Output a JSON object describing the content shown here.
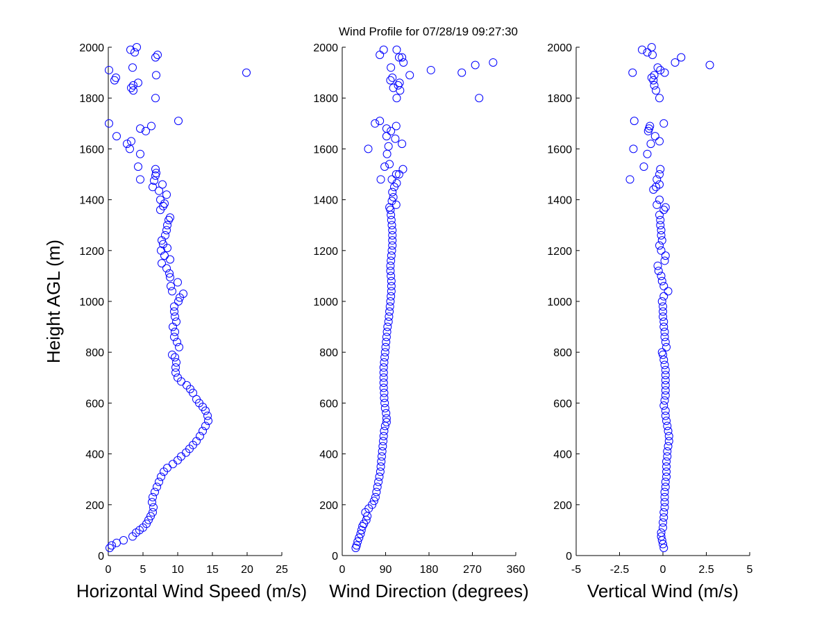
{
  "figure": {
    "title": "Wind Profile for  07/28/19 09:27:30"
  },
  "colors": {
    "marker": "#0000ff",
    "axes": "#000000",
    "background": "#ffffff"
  },
  "chart_data": [
    {
      "type": "scatter",
      "id": "speed",
      "xlabel": "Horizontal Wind Speed (m/s)",
      "ylabel": "Height AGL (m)",
      "xlim": [
        0,
        25
      ],
      "ylim": [
        0,
        2000
      ],
      "xticks": [
        "0",
        "5",
        "10",
        "15",
        "20",
        "25"
      ],
      "yticks": [
        "0",
        "200",
        "400",
        "600",
        "800",
        "1000",
        "1200",
        "1400",
        "1600",
        "1800",
        "2000"
      ],
      "grid": false,
      "marker": "open-circle",
      "points": [
        [
          0.2,
          30
        ],
        [
          0.5,
          40
        ],
        [
          1.2,
          50
        ],
        [
          2.2,
          60
        ],
        [
          3.5,
          75
        ],
        [
          4,
          90
        ],
        [
          4.5,
          100
        ],
        [
          5,
          110
        ],
        [
          5.5,
          125
        ],
        [
          5.8,
          140
        ],
        [
          6.1,
          155
        ],
        [
          6.4,
          170
        ],
        [
          6.5,
          190
        ],
        [
          6.3,
          210
        ],
        [
          6.4,
          230
        ],
        [
          6.7,
          250
        ],
        [
          7,
          270
        ],
        [
          7.3,
          290
        ],
        [
          7.6,
          310
        ],
        [
          8,
          330
        ],
        [
          8.5,
          345
        ],
        [
          9.3,
          360
        ],
        [
          10,
          375
        ],
        [
          10.5,
          390
        ],
        [
          11.2,
          405
        ],
        [
          11.7,
          420
        ],
        [
          12.2,
          435
        ],
        [
          12.7,
          450
        ],
        [
          13.2,
          470
        ],
        [
          13.6,
          490
        ],
        [
          14,
          510
        ],
        [
          14.4,
          530
        ],
        [
          14.3,
          550
        ],
        [
          14,
          570
        ],
        [
          13.6,
          585
        ],
        [
          13.1,
          600
        ],
        [
          12.7,
          615
        ],
        [
          12.2,
          640
        ],
        [
          11.8,
          655
        ],
        [
          11.3,
          670
        ],
        [
          10.5,
          685
        ],
        [
          10,
          700
        ],
        [
          9.7,
          720
        ],
        [
          9.7,
          740
        ],
        [
          9.8,
          760
        ],
        [
          9.6,
          780
        ],
        [
          9.2,
          790
        ],
        [
          10.2,
          820
        ],
        [
          9.9,
          840
        ],
        [
          9.5,
          860
        ],
        [
          9.6,
          880
        ],
        [
          9.3,
          900
        ],
        [
          9.8,
          920
        ],
        [
          9.6,
          940
        ],
        [
          9.5,
          960
        ],
        [
          9.5,
          980
        ],
        [
          10.1,
          1000
        ],
        [
          10.3,
          1015
        ],
        [
          10.8,
          1030
        ],
        [
          9.2,
          1040
        ],
        [
          9,
          1060
        ],
        [
          10,
          1075
        ],
        [
          8.9,
          1095
        ],
        [
          8.8,
          1110
        ],
        [
          8.4,
          1130
        ],
        [
          7.7,
          1150
        ],
        [
          8.9,
          1165
        ],
        [
          8.1,
          1180
        ],
        [
          7.6,
          1200
        ],
        [
          8.5,
          1210
        ],
        [
          7.9,
          1225
        ],
        [
          7.7,
          1240
        ],
        [
          8.2,
          1260
        ],
        [
          8.4,
          1280
        ],
        [
          8.5,
          1300
        ],
        [
          8.7,
          1320
        ],
        [
          8.9,
          1330
        ],
        [
          7.5,
          1360
        ],
        [
          7.9,
          1375
        ],
        [
          8.1,
          1385
        ],
        [
          7.5,
          1400
        ],
        [
          8.4,
          1420
        ],
        [
          7.3,
          1435
        ],
        [
          7.8,
          1460
        ],
        [
          6.4,
          1450
        ],
        [
          6.6,
          1475
        ],
        [
          4.6,
          1480
        ],
        [
          6.8,
          1495
        ],
        [
          6.9,
          1505
        ],
        [
          6.8,
          1520
        ],
        [
          4.3,
          1530
        ],
        [
          4.6,
          1580
        ],
        [
          3.1,
          1600
        ],
        [
          3.3,
          1630
        ],
        [
          2.7,
          1620
        ],
        [
          1.2,
          1650
        ],
        [
          5.4,
          1670
        ],
        [
          4.6,
          1680
        ],
        [
          6.2,
          1690
        ],
        [
          0.1,
          1700
        ],
        [
          10.1,
          1710
        ],
        [
          6.8,
          1800
        ],
        [
          3.6,
          1830
        ],
        [
          3.3,
          1840
        ],
        [
          3.6,
          1850
        ],
        [
          4.3,
          1860
        ],
        [
          0.9,
          1870
        ],
        [
          1.1,
          1880
        ],
        [
          6.9,
          1890
        ],
        [
          0.1,
          1910
        ],
        [
          3.5,
          1920
        ],
        [
          19.9,
          1900
        ],
        [
          7.1,
          1970
        ],
        [
          6.8,
          1960
        ],
        [
          3.8,
          1980
        ],
        [
          3.2,
          1990
        ],
        [
          4.1,
          2000
        ]
      ]
    },
    {
      "type": "scatter",
      "id": "direction",
      "xlabel": "Wind Direction (degrees)",
      "ylabel": "",
      "xlim": [
        0,
        360
      ],
      "ylim": [
        0,
        2000
      ],
      "xticks": [
        "0",
        "90",
        "180",
        "270",
        "360"
      ],
      "yticks": [
        "0",
        "200",
        "400",
        "600",
        "800",
        "1000",
        "1200",
        "1400",
        "1600",
        "1800",
        "2000"
      ],
      "grid": false,
      "marker": "open-circle",
      "points": [
        [
          28,
          30
        ],
        [
          30,
          40
        ],
        [
          32,
          55
        ],
        [
          35,
          70
        ],
        [
          38,
          85
        ],
        [
          40,
          100
        ],
        [
          42,
          115
        ],
        [
          45,
          125
        ],
        [
          50,
          140
        ],
        [
          52,
          155
        ],
        [
          48,
          170
        ],
        [
          55,
          185
        ],
        [
          62,
          200
        ],
        [
          66,
          215
        ],
        [
          69,
          230
        ],
        [
          71,
          250
        ],
        [
          73,
          270
        ],
        [
          75,
          290
        ],
        [
          77,
          310
        ],
        [
          79,
          330
        ],
        [
          80,
          350
        ],
        [
          81,
          370
        ],
        [
          82,
          390
        ],
        [
          83,
          410
        ],
        [
          84,
          430
        ],
        [
          85,
          450
        ],
        [
          86,
          470
        ],
        [
          87,
          490
        ],
        [
          89,
          510
        ],
        [
          92,
          525
        ],
        [
          92,
          540
        ],
        [
          91,
          560
        ],
        [
          89,
          580
        ],
        [
          88,
          600
        ],
        [
          87,
          620
        ],
        [
          87,
          640
        ],
        [
          86,
          660
        ],
        [
          86,
          680
        ],
        [
          86,
          700
        ],
        [
          86,
          720
        ],
        [
          86,
          740
        ],
        [
          87,
          760
        ],
        [
          88,
          780
        ],
        [
          89,
          800
        ],
        [
          90,
          820
        ],
        [
          91,
          840
        ],
        [
          92,
          860
        ],
        [
          93,
          880
        ],
        [
          94,
          900
        ],
        [
          96,
          920
        ],
        [
          97,
          940
        ],
        [
          98,
          960
        ],
        [
          99,
          980
        ],
        [
          100,
          1000
        ],
        [
          101,
          1020
        ],
        [
          102,
          1040
        ],
        [
          102,
          1060
        ],
        [
          102,
          1080
        ],
        [
          101,
          1100
        ],
        [
          100,
          1120
        ],
        [
          100,
          1140
        ],
        [
          101,
          1160
        ],
        [
          102,
          1180
        ],
        [
          103,
          1200
        ],
        [
          104,
          1220
        ],
        [
          104,
          1240
        ],
        [
          104,
          1260
        ],
        [
          104,
          1280
        ],
        [
          103,
          1300
        ],
        [
          102,
          1320
        ],
        [
          101,
          1340
        ],
        [
          100,
          1360
        ],
        [
          98,
          1370
        ],
        [
          112,
          1380
        ],
        [
          103,
          1395
        ],
        [
          106,
          1410
        ],
        [
          104,
          1430
        ],
        [
          108,
          1450
        ],
        [
          113,
          1465
        ],
        [
          103,
          1480
        ],
        [
          80,
          1480
        ],
        [
          112,
          1500
        ],
        [
          118,
          1500
        ],
        [
          126,
          1520
        ],
        [
          88,
          1530
        ],
        [
          98,
          1540
        ],
        [
          93,
          1580
        ],
        [
          54,
          1600
        ],
        [
          96,
          1610
        ],
        [
          110,
          1640
        ],
        [
          124,
          1620
        ],
        [
          92,
          1650
        ],
        [
          101,
          1670
        ],
        [
          92,
          1680
        ],
        [
          112,
          1690
        ],
        [
          68,
          1700
        ],
        [
          78,
          1710
        ],
        [
          127,
          1940
        ],
        [
          113,
          1800
        ],
        [
          120,
          1830
        ],
        [
          106,
          1840
        ],
        [
          116,
          1850
        ],
        [
          119,
          1860
        ],
        [
          100,
          1870
        ],
        [
          104,
          1880
        ],
        [
          140,
          1890
        ],
        [
          184,
          1910
        ],
        [
          101,
          1920
        ],
        [
          248,
          1900
        ],
        [
          276,
          1930
        ],
        [
          313,
          1940
        ],
        [
          284,
          1800
        ],
        [
          78,
          1970
        ],
        [
          86,
          1990
        ],
        [
          113,
          1990
        ],
        [
          118,
          1960
        ],
        [
          124,
          1960
        ]
      ]
    },
    {
      "type": "scatter",
      "id": "vertical",
      "xlabel": "Vertical Wind (m/s)",
      "ylabel": "",
      "xlim": [
        -5,
        5
      ],
      "ylim": [
        0,
        2000
      ],
      "xticks": [
        "-5",
        "-2.5",
        "0",
        "2.5",
        "5"
      ],
      "yticks": [
        "0",
        "200",
        "400",
        "600",
        "800",
        "1000",
        "1200",
        "1400",
        "1600",
        "1800",
        "2000"
      ],
      "grid": false,
      "marker": "open-circle",
      "points": [
        [
          0.05,
          30
        ],
        [
          0,
          45
        ],
        [
          -0.05,
          60
        ],
        [
          -0.1,
          75
        ],
        [
          -0.1,
          90
        ],
        [
          0,
          110
        ],
        [
          0,
          130
        ],
        [
          0.05,
          150
        ],
        [
          0.05,
          170
        ],
        [
          0.1,
          190
        ],
        [
          0.1,
          210
        ],
        [
          0.1,
          230
        ],
        [
          0.1,
          250
        ],
        [
          0.15,
          270
        ],
        [
          0.15,
          290
        ],
        [
          0.2,
          310
        ],
        [
          0.2,
          330
        ],
        [
          0.2,
          350
        ],
        [
          0.2,
          370
        ],
        [
          0.25,
          390
        ],
        [
          0.25,
          410
        ],
        [
          0.3,
          430
        ],
        [
          0.35,
          450
        ],
        [
          0.35,
          470
        ],
        [
          0.3,
          490
        ],
        [
          0.25,
          510
        ],
        [
          0.2,
          530
        ],
        [
          0.15,
          550
        ],
        [
          0.15,
          570
        ],
        [
          0.05,
          590
        ],
        [
          0.1,
          610
        ],
        [
          0.15,
          630
        ],
        [
          0.15,
          650
        ],
        [
          0.15,
          670
        ],
        [
          0.15,
          690
        ],
        [
          0.15,
          710
        ],
        [
          0.15,
          730
        ],
        [
          0.1,
          750
        ],
        [
          0.05,
          770
        ],
        [
          0,
          790
        ],
        [
          -0.05,
          800
        ],
        [
          0.2,
          820
        ],
        [
          0.15,
          840
        ],
        [
          0.1,
          860
        ],
        [
          0.1,
          880
        ],
        [
          0.05,
          900
        ],
        [
          0.05,
          920
        ],
        [
          0,
          940
        ],
        [
          0,
          960
        ],
        [
          0,
          980
        ],
        [
          -0.05,
          1000
        ],
        [
          0.05,
          1020
        ],
        [
          0.3,
          1040
        ],
        [
          0.05,
          1060
        ],
        [
          -0.05,
          1080
        ],
        [
          -0.1,
          1100
        ],
        [
          -0.25,
          1120
        ],
        [
          -0.3,
          1140
        ],
        [
          0.1,
          1160
        ],
        [
          0.15,
          1180
        ],
        [
          -0.1,
          1200
        ],
        [
          -0.2,
          1220
        ],
        [
          -0.05,
          1240
        ],
        [
          -0.1,
          1260
        ],
        [
          -0.1,
          1280
        ],
        [
          -0.15,
          1300
        ],
        [
          -0.15,
          1320
        ],
        [
          -0.2,
          1340
        ],
        [
          0.05,
          1360
        ],
        [
          0.15,
          1370
        ],
        [
          -0.35,
          1380
        ],
        [
          -0.2,
          1400
        ],
        [
          -0.55,
          1440
        ],
        [
          -0.4,
          1450
        ],
        [
          -0.2,
          1460
        ],
        [
          -0.35,
          1480
        ],
        [
          -1.9,
          1480
        ],
        [
          -0.2,
          1500
        ],
        [
          -0.15,
          1520
        ],
        [
          -1.1,
          1530
        ],
        [
          -0.9,
          1580
        ],
        [
          -1.7,
          1600
        ],
        [
          -0.7,
          1620
        ],
        [
          -0.2,
          1630
        ],
        [
          -0.45,
          1650
        ],
        [
          -0.8,
          1680
        ],
        [
          -0.85,
          1670
        ],
        [
          -0.75,
          1690
        ],
        [
          0.05,
          1700
        ],
        [
          -1.65,
          1710
        ],
        [
          -0.2,
          1800
        ],
        [
          -0.4,
          1830
        ],
        [
          -0.5,
          1850
        ],
        [
          -0.55,
          1870
        ],
        [
          -0.65,
          1880
        ],
        [
          -0.5,
          1890
        ],
        [
          -1.75,
          1900
        ],
        [
          -0.15,
          1910
        ],
        [
          -0.3,
          1920
        ],
        [
          0.7,
          1940
        ],
        [
          1.05,
          1960
        ],
        [
          2.7,
          1930
        ],
        [
          -0.6,
          1970
        ],
        [
          -1.2,
          1990
        ],
        [
          -0.9,
          1980
        ],
        [
          -0.65,
          2000
        ],
        [
          0.1,
          1900
        ]
      ]
    }
  ]
}
